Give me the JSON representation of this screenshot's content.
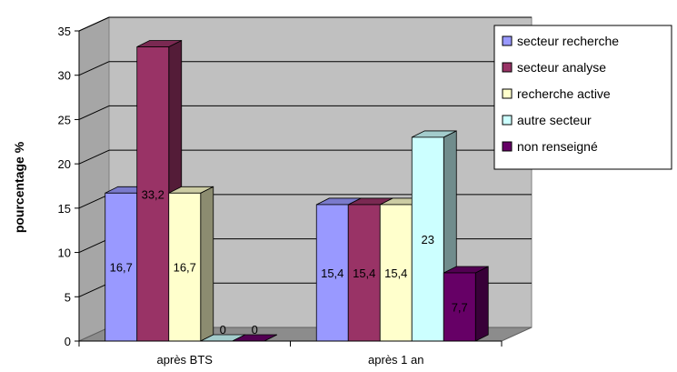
{
  "chart_data": {
    "type": "bar",
    "title": "",
    "xlabel": "",
    "ylabel": "pourcentage %",
    "ylim": [
      0,
      35
    ],
    "yticks": [
      0,
      5,
      10,
      15,
      20,
      25,
      30,
      35
    ],
    "grid": true,
    "three_d": true,
    "legend_position": "right",
    "categories": [
      "après BTS",
      "après 1 an"
    ],
    "series": [
      {
        "name": "secteur recherche",
        "color": "#9999ff",
        "values": [
          16.7,
          15.4
        ],
        "labels": [
          "16,7",
          "15,4"
        ]
      },
      {
        "name": "secteur analyse",
        "color": "#993366",
        "values": [
          33.2,
          15.4
        ],
        "labels": [
          "33,2",
          "15,4"
        ]
      },
      {
        "name": "recherche active",
        "color": "#ffffcc",
        "values": [
          16.7,
          15.4
        ],
        "labels": [
          "16,7",
          "15,4"
        ]
      },
      {
        "name": "autre secteur",
        "color": "#ccffff",
        "values": [
          0,
          23
        ],
        "labels": [
          "0",
          "23"
        ]
      },
      {
        "name": "non renseigné",
        "color": "#660066",
        "values": [
          0,
          7.7
        ],
        "labels": [
          "0",
          "7,7"
        ]
      }
    ]
  }
}
